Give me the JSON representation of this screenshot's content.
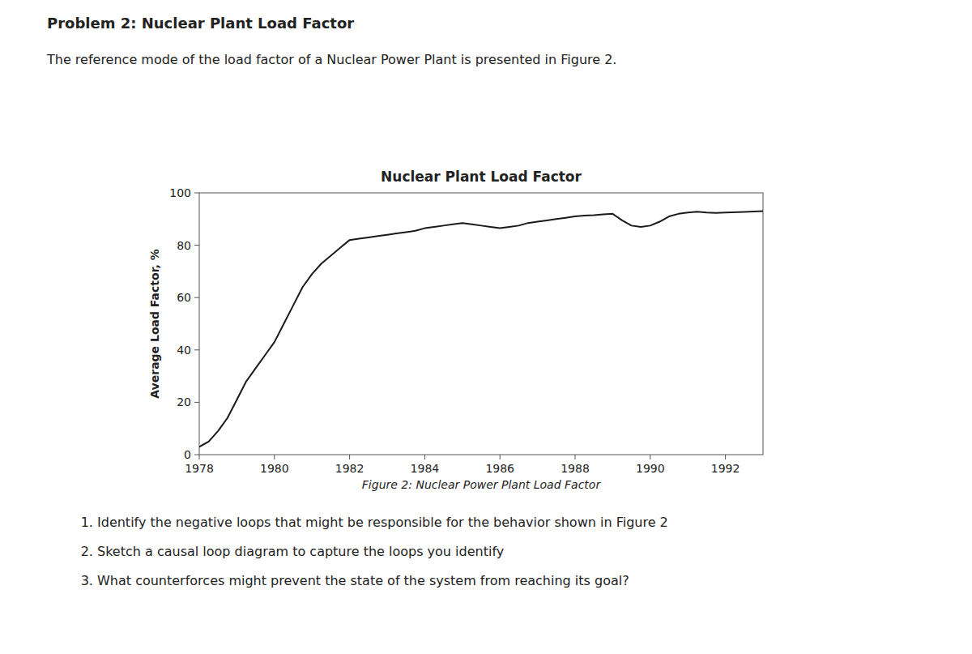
{
  "page_title": "Problem 2: Nuclear Plant Load Factor",
  "page_subtitle": "The reference mode of the load factor of a Nuclear Power Plant is presented in Figure 2.",
  "figure_caption": "Figure 2: Nuclear Power Plant Load Factor",
  "questions": [
    "Identify the negative loops that might be responsible for the behavior shown in Figure 2",
    "Sketch a causal loop diagram to capture the loops you identify",
    "What counterforces might prevent the state of the system from reaching its goal?"
  ],
  "chart_data": {
    "type": "line",
    "title": "Nuclear Plant Load Factor",
    "y_label": "Average Load Factor, %",
    "color": "#1a1a1a",
    "grid": false,
    "xlim": [
      1978,
      1993
    ],
    "xticks": [
      1978,
      1980,
      1982,
      1984,
      1986,
      1988,
      1990,
      1992
    ],
    "ylim": [
      0,
      100
    ],
    "yticks": [
      0,
      20,
      40,
      60,
      80,
      100
    ],
    "x": [
      1978.0,
      1978.25,
      1978.5,
      1978.75,
      1979.0,
      1979.25,
      1979.5,
      1979.75,
      1980.0,
      1980.25,
      1980.5,
      1980.75,
      1981.0,
      1981.25,
      1981.5,
      1981.75,
      1982.0,
      1982.25,
      1982.5,
      1982.75,
      1983.0,
      1983.25,
      1983.5,
      1983.75,
      1984.0,
      1984.25,
      1984.5,
      1984.75,
      1985.0,
      1985.25,
      1985.5,
      1985.75,
      1986.0,
      1986.25,
      1986.5,
      1986.75,
      1987.0,
      1987.25,
      1987.5,
      1987.75,
      1988.0,
      1988.25,
      1988.5,
      1988.75,
      1989.0,
      1989.25,
      1989.5,
      1989.75,
      1990.0,
      1990.25,
      1990.5,
      1990.75,
      1991.0,
      1991.25,
      1991.5,
      1991.75,
      1992.0,
      1992.5,
      1993.0
    ],
    "values": [
      3.0,
      5.0,
      9.0,
      14.0,
      21.0,
      28.0,
      33.0,
      38.0,
      43.0,
      50.0,
      57.0,
      64.0,
      69.0,
      73.0,
      76.0,
      79.0,
      82.0,
      82.5,
      83.0,
      83.5,
      84.0,
      84.5,
      85.0,
      85.5,
      86.5,
      87.0,
      87.5,
      88.0,
      88.5,
      88.0,
      87.5,
      87.0,
      86.5,
      87.0,
      87.5,
      88.5,
      89.0,
      89.5,
      90.0,
      90.5,
      91.0,
      91.3,
      91.5,
      91.8,
      92.0,
      89.5,
      87.5,
      87.0,
      87.5,
      89.0,
      91.0,
      92.0,
      92.5,
      92.8,
      92.5,
      92.3,
      92.5,
      92.7,
      93.0
    ]
  }
}
